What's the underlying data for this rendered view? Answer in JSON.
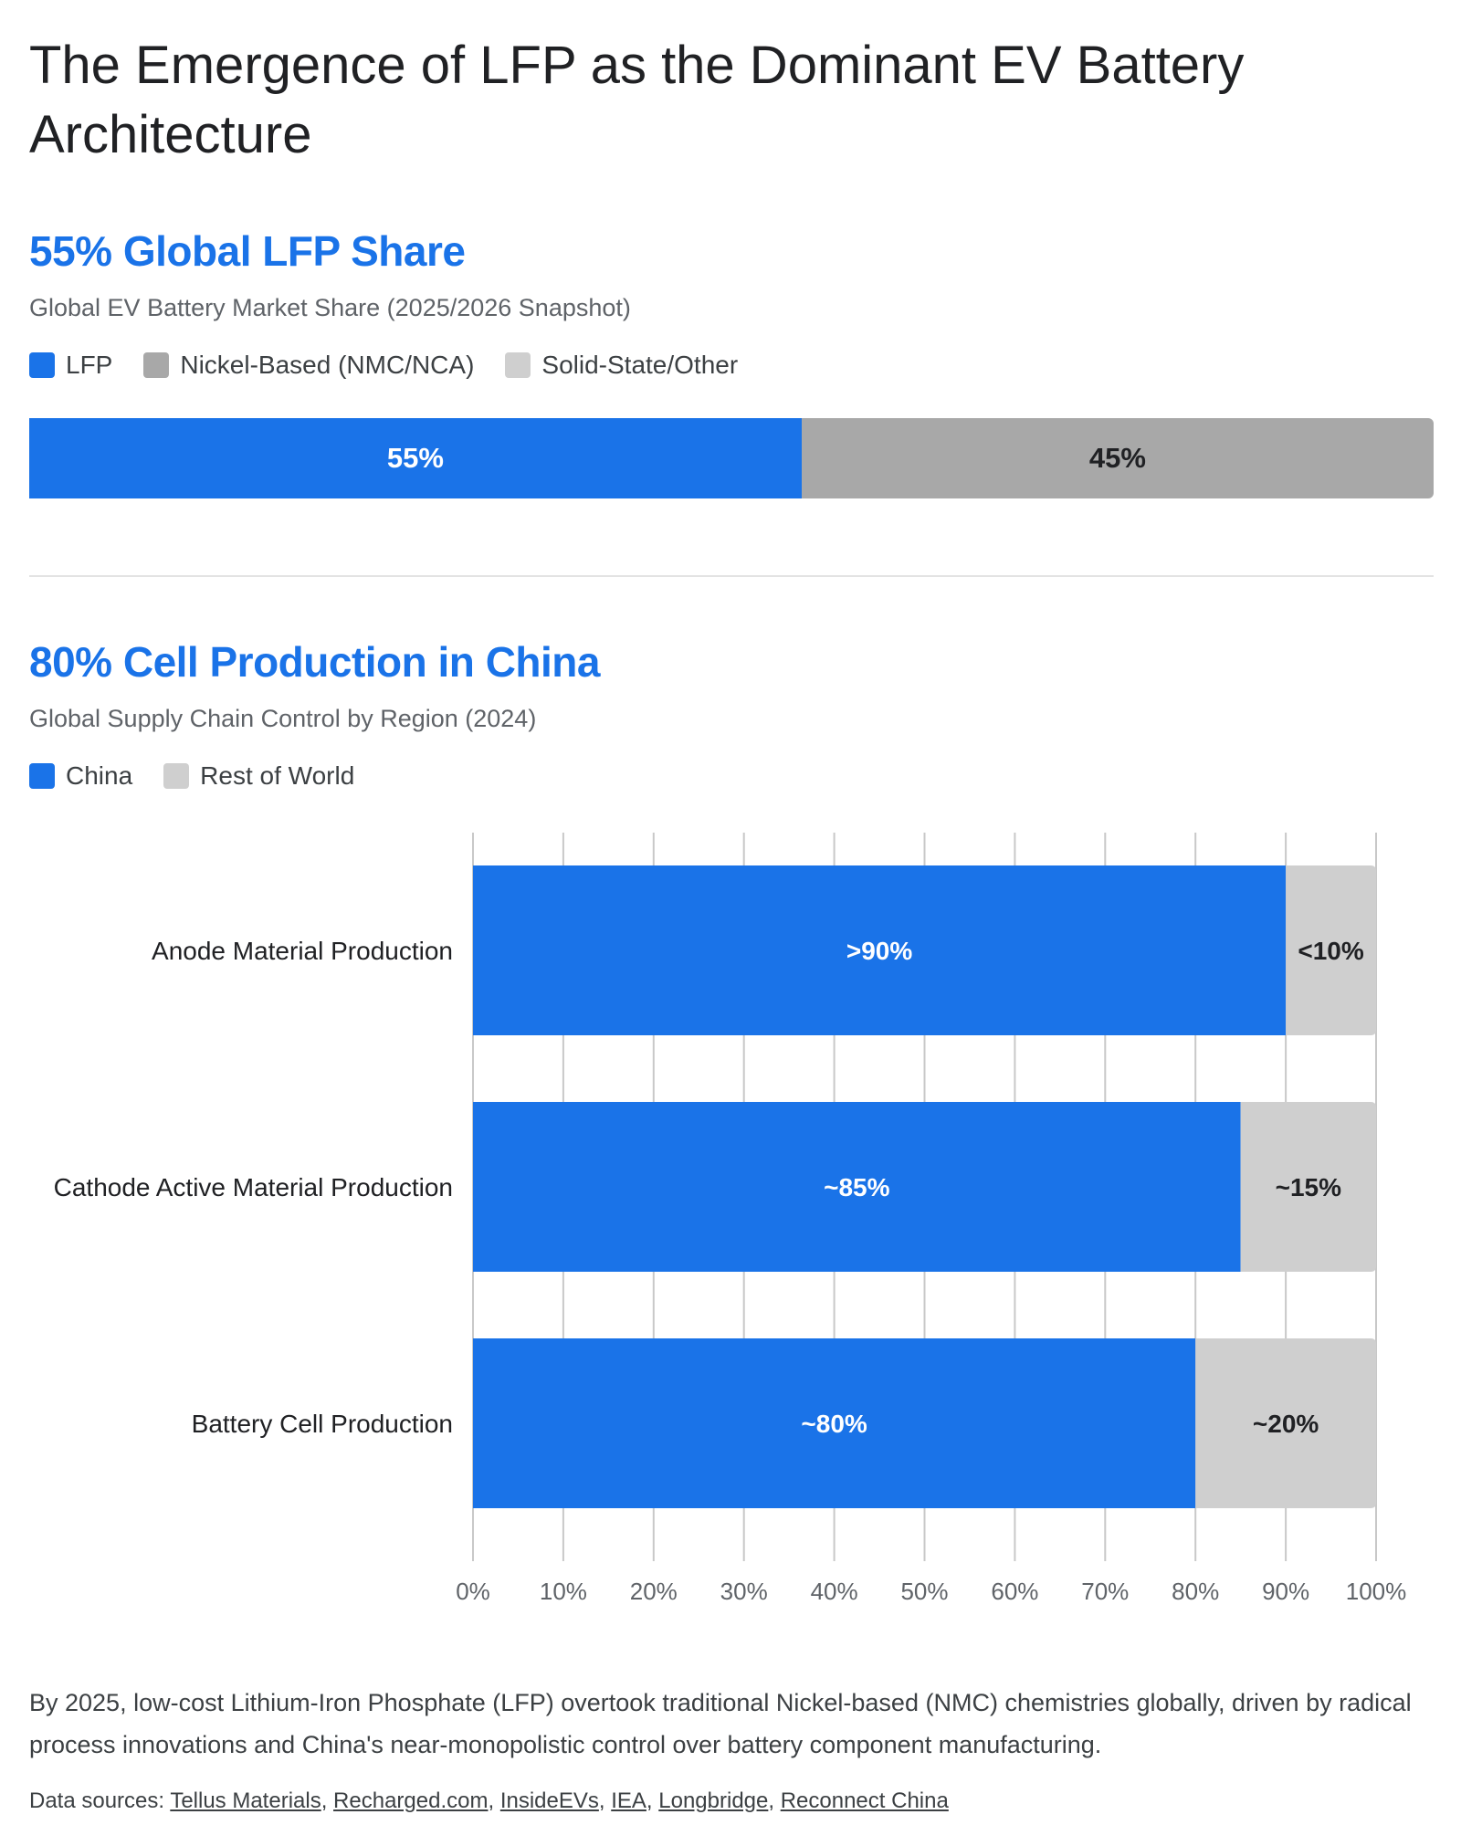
{
  "page": {
    "title": "The Emergence of LFP as the Dominant EV Battery Architecture"
  },
  "colors": {
    "blue": "#1a73e8",
    "gray_dark": "#a8a8a8",
    "gray_light": "#cfcfcf"
  },
  "section1": {
    "headline": "55% Global LFP Share",
    "subtitle": "Global EV Battery Market Share (2025/2026 Snapshot)",
    "legend": [
      {
        "label": "LFP",
        "color": "#1a73e8"
      },
      {
        "label": "Nickel-Based (NMC/NCA)",
        "color": "#a8a8a8"
      },
      {
        "label": "Solid-State/Other",
        "color": "#cfcfcf"
      }
    ]
  },
  "section2": {
    "headline": "80% Cell Production in China",
    "subtitle": "Global Supply Chain Control by Region (2024)",
    "legend": [
      {
        "label": "China",
        "color": "#1a73e8"
      },
      {
        "label": "Rest of World",
        "color": "#cfcfcf"
      }
    ]
  },
  "chart_data": [
    {
      "type": "bar",
      "orientation": "horizontal-stacked",
      "title": "Global EV Battery Market Share (2025/2026 Snapshot)",
      "categories": [
        ""
      ],
      "series": [
        {
          "name": "LFP",
          "values": [
            55
          ],
          "labels": [
            "55%"
          ],
          "color": "#1a73e8"
        },
        {
          "name": "Nickel-Based (NMC/NCA)",
          "values": [
            45
          ],
          "labels": [
            "45%"
          ],
          "color": "#a8a8a8"
        },
        {
          "name": "Solid-State/Other",
          "values": [
            0
          ],
          "labels": [
            ""
          ],
          "color": "#cfcfcf"
        }
      ],
      "xlim": [
        0,
        100
      ],
      "grid": false
    },
    {
      "type": "bar",
      "orientation": "horizontal-stacked",
      "title": "Global Supply Chain Control by Region (2024)",
      "categories": [
        "Anode Material Production",
        "Cathode Active Material Production",
        "Battery Cell Production"
      ],
      "series": [
        {
          "name": "China",
          "values": [
            90,
            85,
            80
          ],
          "labels": [
            ">90%",
            "~85%",
            "~80%"
          ],
          "color": "#1a73e8"
        },
        {
          "name": "Rest of World",
          "values": [
            10,
            15,
            20
          ],
          "labels": [
            "<10%",
            "~15%",
            "~20%"
          ],
          "color": "#cfcfcf"
        }
      ],
      "xlim": [
        0,
        100
      ],
      "xticks": [
        "0%",
        "10%",
        "20%",
        "30%",
        "40%",
        "50%",
        "60%",
        "70%",
        "80%",
        "90%",
        "100%"
      ],
      "grid": true
    }
  ],
  "footer": {
    "description": "By 2025, low-cost Lithium-Iron Phosphate (LFP) overtook traditional Nickel-based (NMC) chemistries globally, driven by radical process innovations and China's near-monopolistic control over battery component manufacturing.",
    "sources_prefix": "Data sources: ",
    "sources": [
      "Tellus Materials",
      "Recharged.com",
      "InsideEVs",
      "IEA",
      "Longbridge",
      "Reconnect China"
    ]
  }
}
